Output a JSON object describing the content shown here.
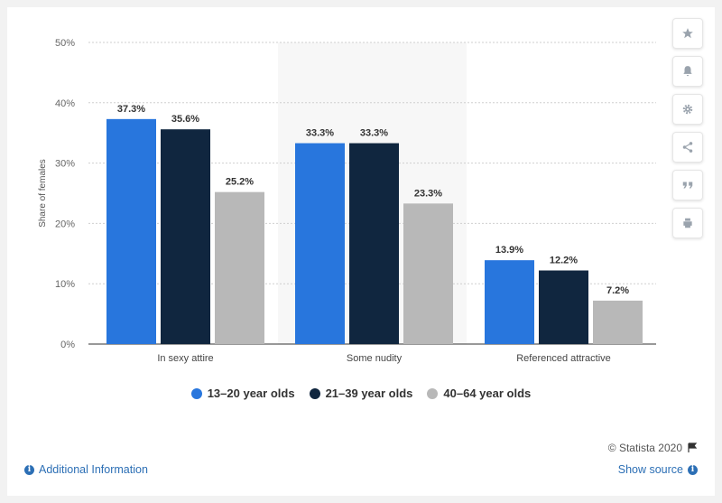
{
  "chart_data": {
    "type": "bar",
    "categories": [
      "In sexy attire",
      "Some nudity",
      "Referenced attractive"
    ],
    "series": [
      {
        "name": "13-20 year olds",
        "values": [
          37.3,
          33.3,
          13.9
        ],
        "labels": [
          "37.3%",
          "33.3%",
          "13.9%"
        ],
        "color": "#2876dd"
      },
      {
        "name": "21-39 year olds",
        "values": [
          35.6,
          33.3,
          12.2
        ],
        "labels": [
          "35.6%",
          "33.3%",
          "12.2%"
        ],
        "color": "#10263f"
      },
      {
        "name": "40-64 year olds",
        "values": [
          25.2,
          23.3,
          7.2
        ],
        "labels": [
          "25.2%",
          "23.3%",
          "7.2%"
        ],
        "color": "#b8b8b8"
      }
    ],
    "ylabel": "Share of females",
    "ylim": [
      0,
      50
    ],
    "yticks": [
      0,
      10,
      20,
      30,
      40,
      50
    ],
    "ytick_labels": [
      "0%",
      "10%",
      "20%",
      "30%",
      "40%",
      "50%"
    ],
    "highlighted_category": "Some nudity",
    "grid": true,
    "legend_position": "bottom"
  },
  "legend": {
    "items": [
      "13–20 year olds",
      "21–39 year olds",
      "40–64 year olds"
    ],
    "colors": [
      "#2876dd",
      "#10263f",
      "#b8b8b8"
    ]
  },
  "footer": {
    "copyright": "© Statista 2020",
    "additional_info": "Additional Information",
    "show_source": "Show source"
  },
  "sidebar_icons": [
    "star-icon",
    "bell-icon",
    "gear-icon",
    "share-icon",
    "quote-icon",
    "print-icon"
  ]
}
